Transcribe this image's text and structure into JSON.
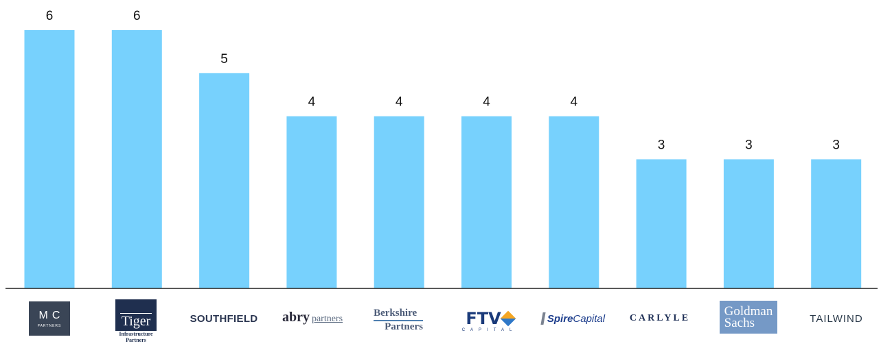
{
  "chart_data": {
    "type": "bar",
    "categories": [
      "MC Partners",
      "Tiger Infrastructure Partners",
      "Southfield",
      "Abry Partners",
      "Berkshire Partners",
      "FTV Capital",
      "Spire Capital",
      "Carlyle",
      "Goldman Sachs",
      "Tailwind"
    ],
    "values": [
      6,
      6,
      5,
      4,
      4,
      4,
      4,
      3,
      3,
      3
    ],
    "ylim": [
      0,
      6
    ],
    "bar_color": "#77d1fd",
    "axis_color": "#222222",
    "label_color": "#111111",
    "grid": false,
    "title": "",
    "xlabel": "",
    "ylabel": ""
  },
  "logos": {
    "mc": {
      "main": "MC",
      "sub": "PARTNERS",
      "bg": "#3a4556"
    },
    "tiger": {
      "main": "Tiger",
      "sub1": "Infrastructure",
      "sub2": "Partners",
      "bg": "#1f2f4f"
    },
    "southfield": {
      "text": "SOUTHFIELD"
    },
    "abry": {
      "main": "abry",
      "sub": "partners"
    },
    "berkshire": {
      "line1": "Berkshire",
      "line2": "Partners"
    },
    "ftv": {
      "main": "FTV",
      "sub": "CAPITAL"
    },
    "spire": {
      "main": "Spire",
      "sub": "Capital"
    },
    "carlyle": {
      "text": "CARLYLE"
    },
    "goldman": {
      "line1": "Goldman",
      "line2": "Sachs",
      "bg": "#7599c6"
    },
    "tailwind": {
      "text": "TAILWIND"
    }
  }
}
